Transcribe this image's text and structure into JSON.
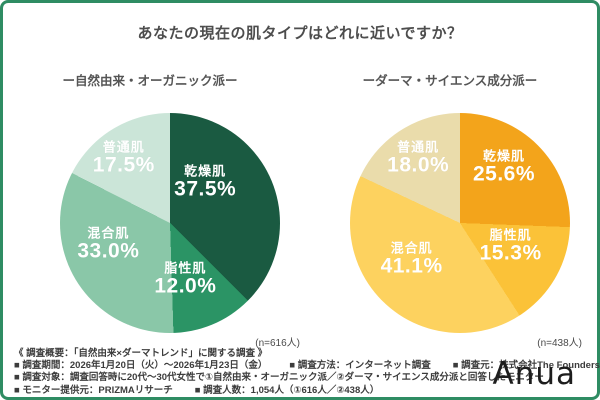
{
  "title": "あなたの現在の肌タイプはどれに近いですか？",
  "frame_color": "#2f8c63",
  "chart_data": [
    {
      "type": "pie",
      "title": "ー自然由来・オーガニック派ー",
      "n_label": "(n=616人)",
      "legend_position": "labels-inside",
      "start_angle_deg": 0,
      "direction": "clockwise",
      "slices": [
        {
          "label": "乾燥肌",
          "value": 37.5,
          "display": "37.5%",
          "color": "#1a5a41",
          "label_pos": [
            66,
            32
          ]
        },
        {
          "label": "脂性肌",
          "value": 12.0,
          "display": "12.0%",
          "color": "#2b9465",
          "label_pos": [
            57,
            76
          ]
        },
        {
          "label": "混合肌",
          "value": 33.0,
          "display": "33.0%",
          "color": "#8ac7a8",
          "label_pos": [
            22,
            60
          ]
        },
        {
          "label": "普通肌",
          "value": 17.5,
          "display": "17.5%",
          "color": "#cbe5d8",
          "label_pos": [
            29,
            21
          ]
        }
      ]
    },
    {
      "type": "pie",
      "title": "ーダーマ・サイエンス成分派ー",
      "n_label": "(n=438人)",
      "legend_position": "labels-inside",
      "start_angle_deg": 0,
      "direction": "clockwise",
      "slices": [
        {
          "label": "乾燥肌",
          "value": 25.6,
          "display": "25.6%",
          "color": "#f3a41b",
          "label_pos": [
            70,
            25
          ]
        },
        {
          "label": "脂性肌",
          "value": 15.3,
          "display": "15.3%",
          "color": "#fbc238",
          "label_pos": [
            73,
            61
          ]
        },
        {
          "label": "混合肌",
          "value": 41.1,
          "display": "41.1%",
          "color": "#fdd25f",
          "label_pos": [
            28,
            67
          ]
        },
        {
          "label": "普通肌",
          "value": 18.0,
          "display": "18.0%",
          "color": "#eadcab",
          "label_pos": [
            31,
            21
          ]
        }
      ]
    }
  ],
  "footer": {
    "heading": "《 調査概要：「自然由来×ダーマトレンド」に関する調査 》",
    "lines": [
      [
        "■ 調査期間：2026年1月20日（火）〜2026年1月23日（金）",
        "■ 調査方法：インターネット調査",
        "■ 調査元：株式会社The Founders"
      ],
      [
        "■ 調査対象：調査回答時に20代〜30代女性で①自然由来・オーガニック派／②ダーマ・サイエンス成分派と回答したモニター"
      ],
      [
        "■ モニター提供元：PRIZMAリサーチ",
        "■ 調査人数：1,054人（①616人／②438人）"
      ]
    ],
    "logo": "Anua"
  }
}
